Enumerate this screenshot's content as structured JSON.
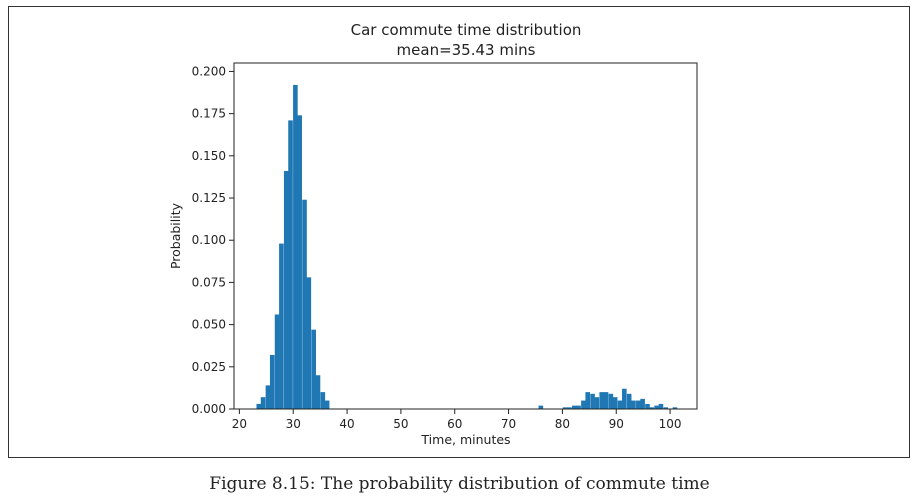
{
  "figure": {
    "caption": "Figure 8.15: The probability distribution of commute time"
  },
  "chart_data": {
    "type": "bar",
    "title": "Car commute time distribution",
    "subtitle": "mean=35.43 mins",
    "xlabel": "Time, minutes",
    "ylabel": "Probability",
    "xlim": [
      19,
      105
    ],
    "ylim": [
      0,
      0.205
    ],
    "xticks": [
      20,
      30,
      40,
      50,
      60,
      70,
      80,
      90,
      100
    ],
    "yticks": [
      0.0,
      0.025,
      0.05,
      0.075,
      0.1,
      0.125,
      0.15,
      0.175,
      0.2
    ],
    "ytick_labels": [
      "0.000",
      "0.025",
      "0.050",
      "0.075",
      "0.100",
      "0.125",
      "0.150",
      "0.175",
      "0.200"
    ],
    "bin_width": 0.85,
    "bar_color": "#1f77b4",
    "grid": false,
    "series": [
      {
        "x": [
          23.6,
          24.4,
          25.3,
          26.1,
          27.0,
          27.8,
          28.7,
          29.5,
          30.4,
          31.2,
          32.1,
          32.9,
          33.8,
          34.6,
          35.5,
          36.3,
          76.0,
          80.5,
          81.3,
          82.2,
          83.0,
          83.9,
          84.7,
          85.6,
          86.4,
          87.3,
          88.1,
          89.0,
          89.8,
          90.7,
          91.5,
          92.4,
          93.2,
          94.1,
          94.9,
          95.8,
          96.6,
          97.5,
          98.3,
          99.2,
          100.9
        ],
        "y": [
          0.003,
          0.007,
          0.014,
          0.032,
          0.056,
          0.098,
          0.141,
          0.171,
          0.192,
          0.174,
          0.124,
          0.078,
          0.047,
          0.02,
          0.01,
          0.005,
          0.002,
          0.001,
          0.001,
          0.002,
          0.002,
          0.005,
          0.01,
          0.009,
          0.007,
          0.01,
          0.01,
          0.009,
          0.007,
          0.005,
          0.012,
          0.009,
          0.005,
          0.005,
          0.006,
          0.003,
          0.001,
          0.002,
          0.003,
          0.001,
          0.001
        ]
      }
    ]
  }
}
